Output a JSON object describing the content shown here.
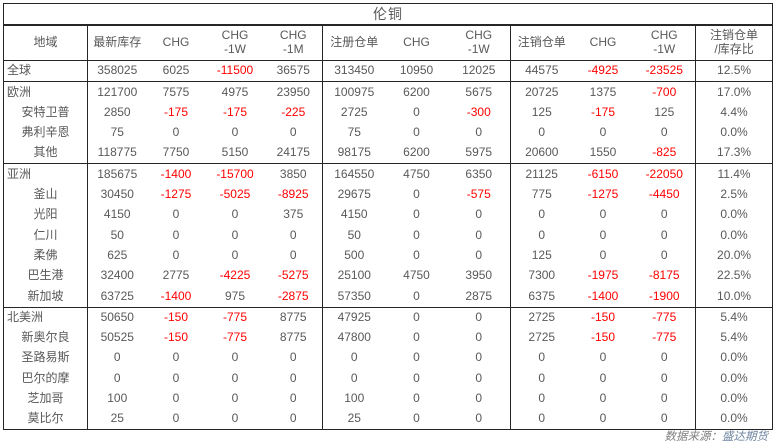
{
  "title": "伦铜",
  "footer": {
    "prefix": "数据来源：",
    "source": "盛达期货"
  },
  "colors": {
    "text": "#595959",
    "negative": "#ff0000",
    "border": "#262626",
    "source_link": "#6e86a0"
  },
  "table": {
    "columns": [
      {
        "label": "地域",
        "sub": ""
      },
      {
        "label": "最新库存",
        "sub": ""
      },
      {
        "label": "CHG",
        "sub": ""
      },
      {
        "label": "CHG",
        "sub": "-1W"
      },
      {
        "label": "CHG",
        "sub": "-1M"
      },
      {
        "label": "注册仓单",
        "sub": ""
      },
      {
        "label": "CHG",
        "sub": ""
      },
      {
        "label": "CHG",
        "sub": "-1W"
      },
      {
        "label": "注销仓单",
        "sub": ""
      },
      {
        "label": "CHG",
        "sub": ""
      },
      {
        "label": "CHG",
        "sub": "-1W"
      },
      {
        "label": "注销仓单",
        "sub": "/库存比"
      }
    ],
    "rows": [
      {
        "region": "全球",
        "indent": false,
        "section_start": false,
        "values": [
          "358025",
          "6025",
          "-11500",
          "36575",
          "313450",
          "10950",
          "12025",
          "44575",
          "-4925",
          "-23525",
          "12.5%"
        ]
      },
      {
        "region": "欧洲",
        "indent": false,
        "section_start": true,
        "values": [
          "121700",
          "7575",
          "4975",
          "23950",
          "100975",
          "6200",
          "5675",
          "20725",
          "1375",
          "-700",
          "17.0%"
        ]
      },
      {
        "region": "安特卫普",
        "indent": true,
        "section_start": false,
        "values": [
          "2850",
          "-175",
          "-175",
          "-225",
          "2725",
          "0",
          "-300",
          "125",
          "-175",
          "125",
          "4.4%"
        ]
      },
      {
        "region": "弗利辛恩",
        "indent": true,
        "section_start": false,
        "values": [
          "75",
          "0",
          "0",
          "0",
          "75",
          "0",
          "0",
          "0",
          "0",
          "0",
          "0.0%"
        ]
      },
      {
        "region": "其他",
        "indent": true,
        "section_start": false,
        "values": [
          "118775",
          "7750",
          "5150",
          "24175",
          "98175",
          "6200",
          "5975",
          "20600",
          "1550",
          "-825",
          "17.3%"
        ]
      },
      {
        "region": "亚洲",
        "indent": false,
        "section_start": true,
        "values": [
          "185675",
          "-1400",
          "-15700",
          "3850",
          "164550",
          "4750",
          "6350",
          "21125",
          "-6150",
          "-22050",
          "11.4%"
        ]
      },
      {
        "region": "釜山",
        "indent": true,
        "section_start": false,
        "values": [
          "30450",
          "-1275",
          "-5025",
          "-8925",
          "29675",
          "0",
          "-575",
          "775",
          "-1275",
          "-4450",
          "2.5%"
        ]
      },
      {
        "region": "光阳",
        "indent": true,
        "section_start": false,
        "values": [
          "4150",
          "0",
          "0",
          "375",
          "4150",
          "0",
          "0",
          "0",
          "0",
          "0",
          "0.0%"
        ]
      },
      {
        "region": "仁川",
        "indent": true,
        "section_start": false,
        "values": [
          "50",
          "0",
          "0",
          "0",
          "50",
          "0",
          "0",
          "0",
          "0",
          "0",
          "0.0%"
        ]
      },
      {
        "region": "柔佛",
        "indent": true,
        "section_start": false,
        "values": [
          "625",
          "0",
          "0",
          "0",
          "500",
          "0",
          "0",
          "125",
          "0",
          "0",
          "20.0%"
        ]
      },
      {
        "region": "巴生港",
        "indent": true,
        "section_start": false,
        "values": [
          "32400",
          "2775",
          "-4225",
          "-5275",
          "25100",
          "4750",
          "3950",
          "7300",
          "-1975",
          "-8175",
          "22.5%"
        ]
      },
      {
        "region": "新加坡",
        "indent": true,
        "section_start": false,
        "values": [
          "63725",
          "-1400",
          "975",
          "-2875",
          "57350",
          "0",
          "2875",
          "6375",
          "-1400",
          "-1900",
          "10.0%"
        ]
      },
      {
        "region": "北美洲",
        "indent": false,
        "section_start": true,
        "values": [
          "50650",
          "-150",
          "-775",
          "8775",
          "47925",
          "0",
          "0",
          "2725",
          "-150",
          "-775",
          "5.4%"
        ]
      },
      {
        "region": "新奥尔良",
        "indent": true,
        "section_start": false,
        "values": [
          "50525",
          "-150",
          "-775",
          "8775",
          "47800",
          "0",
          "0",
          "2725",
          "-150",
          "-775",
          "5.4%"
        ]
      },
      {
        "region": "圣路易斯",
        "indent": true,
        "section_start": false,
        "values": [
          "0",
          "0",
          "0",
          "0",
          "0",
          "0",
          "0",
          "0",
          "0",
          "0",
          "0.0%"
        ]
      },
      {
        "region": "巴尔的摩",
        "indent": true,
        "section_start": false,
        "values": [
          "0",
          "0",
          "0",
          "0",
          "0",
          "0",
          "0",
          "0",
          "0",
          "0",
          "0.0%"
        ]
      },
      {
        "region": "芝加哥",
        "indent": true,
        "section_start": false,
        "values": [
          "100",
          "0",
          "0",
          "0",
          "100",
          "0",
          "0",
          "0",
          "0",
          "0",
          "0.0%"
        ]
      },
      {
        "region": "莫比尔",
        "indent": true,
        "section_start": false,
        "values": [
          "25",
          "0",
          "0",
          "0",
          "25",
          "0",
          "0",
          "0",
          "0",
          "0",
          "0.0%"
        ]
      }
    ]
  }
}
